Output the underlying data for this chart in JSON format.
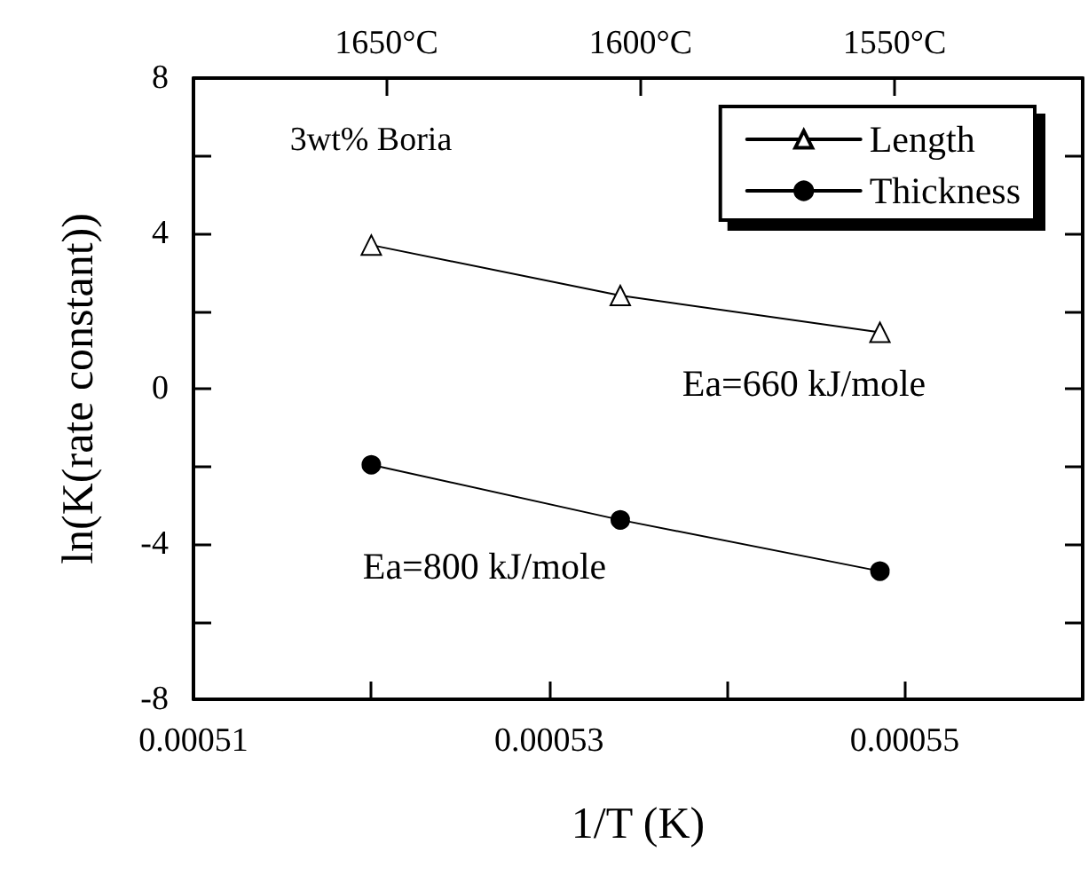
{
  "chart_data": {
    "type": "line",
    "xlabel": "1/T (K)",
    "ylabel": "ln(K(rate constant))",
    "x": [
      0.00052,
      0.000534,
      0.0005486
    ],
    "series": [
      {
        "name": "Length",
        "color": "#000000",
        "marker": "triangle",
        "values": [
          3.7,
          2.4,
          1.45
        ]
      },
      {
        "name": "Thickness",
        "color": "#000000",
        "marker": "circle",
        "values": [
          -1.96,
          -3.38,
          -4.7
        ]
      }
    ],
    "xlim": [
      0.00051,
      0.00056
    ],
    "xticks": [
      0.00051,
      {
        "value": 0.00052,
        "label": null
      },
      0.00053,
      {
        "value": 0.00054,
        "label": null
      },
      0.00055,
      {
        "value": 0.00056,
        "label": null
      }
    ],
    "x2lim": [
      1688,
      1513
    ],
    "x2ticks": [
      {
        "value": 1650,
        "label": "1650°C"
      },
      {
        "value": 1600,
        "label": "1600°C"
      },
      {
        "value": 1550,
        "label": "1550°C"
      }
    ],
    "ylim": [
      -8,
      8
    ],
    "yticks": [
      -8,
      {
        "value": -6,
        "label": null
      },
      -4,
      {
        "value": -2,
        "label": null
      },
      0,
      {
        "value": 2,
        "label": null
      },
      4,
      {
        "value": 6,
        "label": null
      },
      8
    ],
    "annotations": [
      "3wt% Boria",
      "Ea=660 kJ/mole",
      "Ea=800 kJ/mole"
    ],
    "legend": "top right",
    "grid": false,
    "line_style": "solid"
  }
}
